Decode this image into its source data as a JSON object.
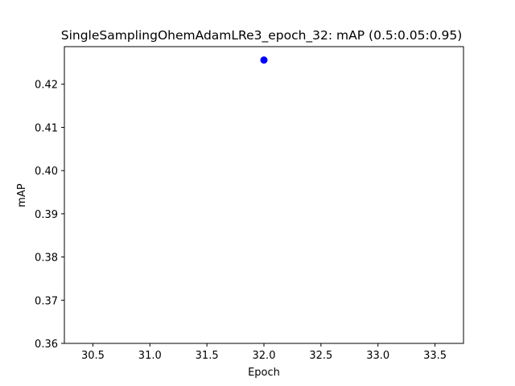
{
  "chart_data": {
    "type": "scatter",
    "title": "SingleSamplingOhemAdamLRe3_epoch_32:  mAP (0.5:0.05:0.95)",
    "xlabel": "Epoch",
    "ylabel": "mAP",
    "xlim": [
      30.25,
      33.75
    ],
    "ylim": [
      0.36,
      0.4287
    ],
    "xticks": [
      "30.5",
      "31.0",
      "31.5",
      "32.0",
      "32.5",
      "33.0",
      "33.5"
    ],
    "yticks": [
      "0.36",
      "0.37",
      "0.38",
      "0.39",
      "0.40",
      "0.41",
      "0.42"
    ],
    "grid": false,
    "series": [
      {
        "color": "#0000ff",
        "marker": "circle",
        "points": [
          {
            "x": 32.0,
            "y": 0.4256
          }
        ]
      }
    ]
  }
}
